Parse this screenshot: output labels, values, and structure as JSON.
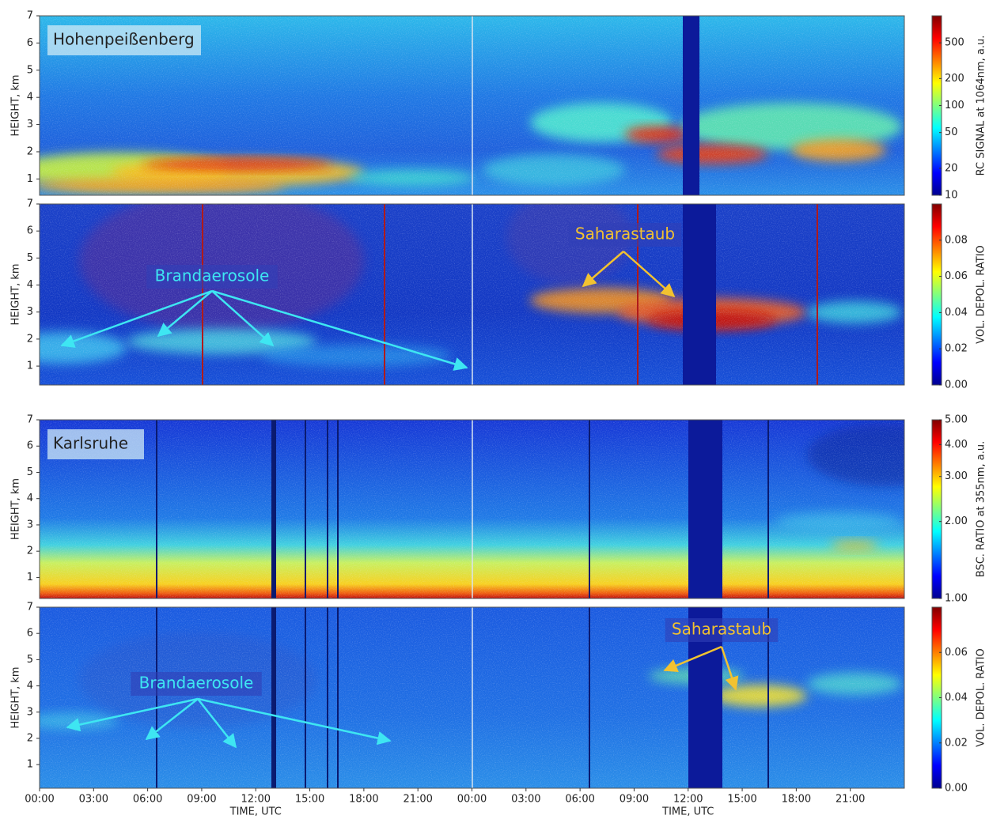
{
  "chart_data": [
    {
      "type": "heatmap",
      "title": "Hohenpeißenberg",
      "ylabel": "HEIGHT, km",
      "ylim": [
        0.4,
        7
      ],
      "yticks": [
        1,
        2,
        3,
        4,
        5,
        6,
        7
      ],
      "xlim": [
        0,
        48
      ],
      "colorbar": {
        "label": "RC SIGNAL at 1064nm, a.u.",
        "log": true,
        "lim": [
          10,
          1000
        ],
        "ticks": [
          10,
          20,
          50,
          100,
          200,
          500
        ]
      }
    },
    {
      "type": "heatmap",
      "ylabel": "HEIGHT, km",
      "ylim": [
        0.3,
        7
      ],
      "yticks": [
        1,
        2,
        3,
        4,
        5,
        6,
        7
      ],
      "xlim": [
        0,
        48
      ],
      "annotations": [
        "Brandaerosole",
        "Saharastaub"
      ],
      "colorbar": {
        "label": "VOL. DEPOL. RATIO",
        "log": false,
        "lim": [
          0,
          0.1
        ],
        "ticks": [
          {
            "value": 0,
            "label": "0.00"
          },
          0.02,
          0.04,
          0.06,
          0.08
        ]
      }
    },
    {
      "type": "heatmap",
      "title": "Karlsruhe",
      "ylabel": "HEIGHT, km",
      "ylim": [
        0.2,
        7
      ],
      "yticks": [
        1,
        2,
        3,
        4,
        5,
        6,
        7
      ],
      "xlim": [
        0,
        48
      ],
      "colorbar": {
        "label": "BSC. RATIO at 355nm, a.u.",
        "log": true,
        "lim": [
          1,
          5
        ],
        "ticks": [
          {
            "value": 1,
            "label": "1.00"
          },
          {
            "value": 2,
            "label": "2.00"
          },
          {
            "value": 3,
            "label": "3.00"
          },
          {
            "value": 4,
            "label": "4.00"
          },
          {
            "value": 5,
            "label": "5.00"
          }
        ]
      }
    },
    {
      "type": "heatmap",
      "ylabel": "HEIGHT, km",
      "xlabel": "TIME, UTC",
      "ylim": [
        0.1,
        7
      ],
      "yticks": [
        1,
        2,
        3,
        4,
        5,
        6,
        7
      ],
      "xlim": [
        0,
        48
      ],
      "xticks": [
        {
          "value": 0,
          "label": "00:00"
        },
        {
          "value": 3,
          "label": "03:00"
        },
        {
          "value": 6,
          "label": "06:00"
        },
        {
          "value": 9,
          "label": "09:00"
        },
        {
          "value": 12,
          "label": "12:00"
        },
        {
          "value": 15,
          "label": "15:00"
        },
        {
          "value": 18,
          "label": "18:00"
        },
        {
          "value": 21,
          "label": "21:00"
        },
        {
          "value": 24,
          "label": "00:00"
        },
        {
          "value": 27,
          "label": "03:00"
        },
        {
          "value": 30,
          "label": "06:00"
        },
        {
          "value": 33,
          "label": "09:00"
        },
        {
          "value": 36,
          "label": "12:00"
        },
        {
          "value": 39,
          "label": "15:00"
        },
        {
          "value": 42,
          "label": "18:00"
        },
        {
          "value": 45,
          "label": "21:00"
        }
      ],
      "annotations": [
        "Brandaerosole",
        "Saharastaub"
      ],
      "colorbar": {
        "label": "VOL. DEPOL. RATIO",
        "log": false,
        "lim": [
          0,
          0.08
        ],
        "ticks": [
          {
            "value": 0,
            "label": "0.00"
          },
          0.02,
          0.04,
          0.06
        ]
      }
    }
  ]
}
